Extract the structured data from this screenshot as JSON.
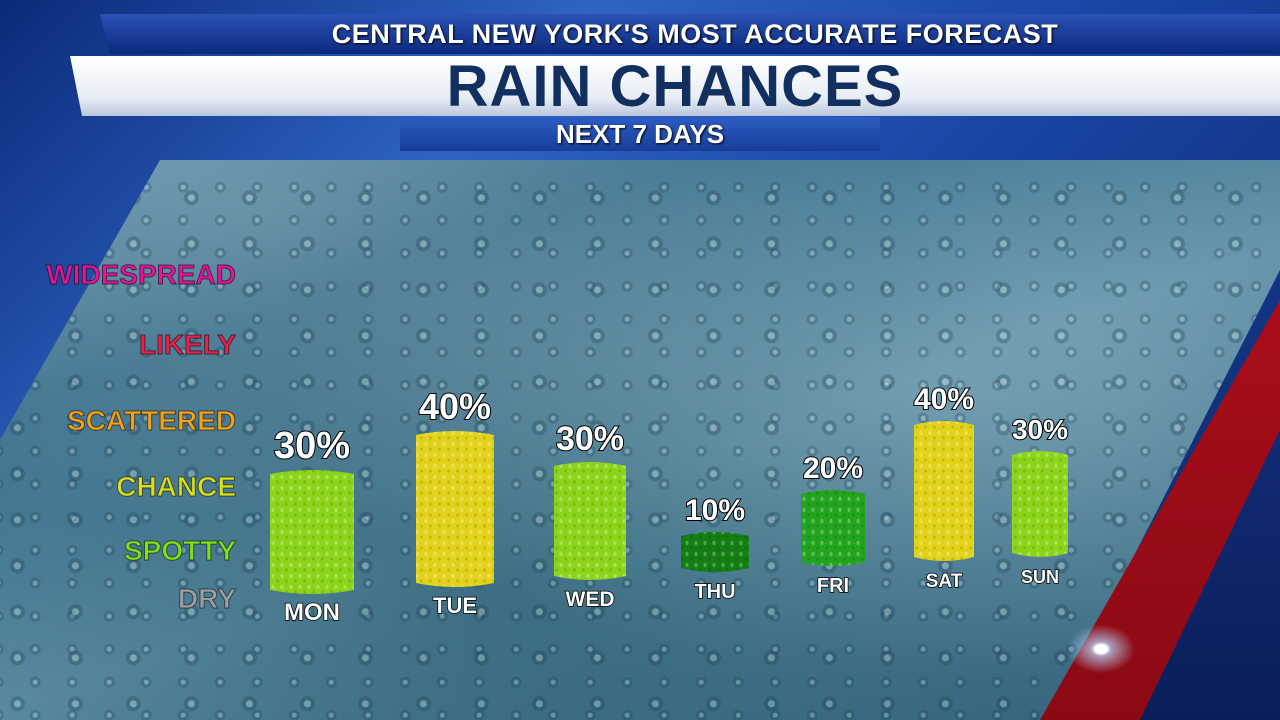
{
  "header": {
    "tagline": "CENTRAL NEW YORK'S MOST ACCURATE FORECAST",
    "title": "RAIN CHANCES",
    "subtitle": "NEXT 7 DAYS"
  },
  "colors": {
    "widespread": "#e0179b",
    "likely": "#e8214e",
    "scattered": "#f2a21c",
    "chance": "#d6e020",
    "spotty": "#7fe01c",
    "dry": "#9aa0a6",
    "bar_yellow": "#e3d21a",
    "bar_lime": "#8cd41a",
    "bar_green": "#22a41e",
    "bar_dark_green": "#147d14"
  },
  "chart_data": {
    "type": "bar",
    "title": "RAIN CHANCES",
    "subtitle": "NEXT 7 DAYS",
    "categories": [
      "MON",
      "TUE",
      "WED",
      "THU",
      "FRI",
      "SAT",
      "SUN"
    ],
    "values": [
      30,
      40,
      30,
      10,
      20,
      40,
      30
    ],
    "value_labels": [
      "30%",
      "40%",
      "30%",
      "10%",
      "20%",
      "40%",
      "30%"
    ],
    "unit": "%",
    "ylim": [
      0,
      100
    ],
    "levels": [
      "WIDESPREAD",
      "LIKELY",
      "SCATTERED",
      "CHANCE",
      "SPOTTY",
      "DRY"
    ],
    "bar_colors": [
      "bar_lime",
      "bar_yellow",
      "bar_lime",
      "bar_dark_green",
      "bar_green",
      "bar_yellow",
      "bar_lime"
    ],
    "grid": false,
    "legend": "none"
  }
}
